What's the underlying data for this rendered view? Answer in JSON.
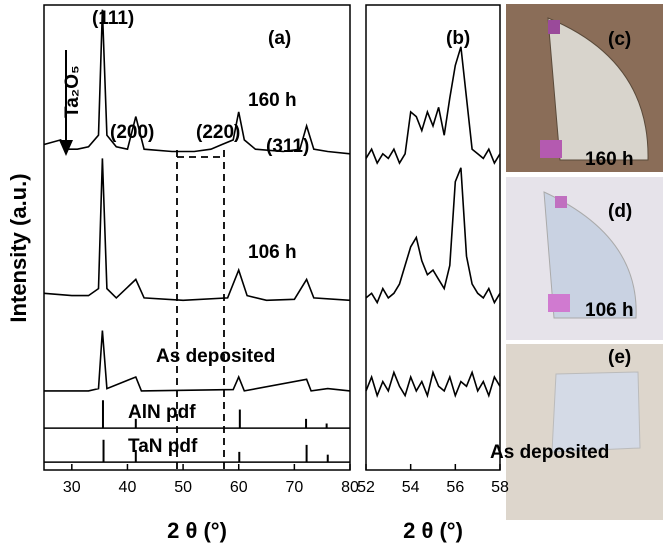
{
  "chart_data": [
    {
      "type": "line",
      "label": "(a)",
      "x_label": "2 θ (°)",
      "y_label": "Intensity (a.u.)",
      "xlim": [
        25,
        80
      ],
      "xticks": [
        30,
        40,
        50,
        60,
        70,
        80
      ],
      "ylim": [
        0,
        100
      ],
      "color": "#000000",
      "annotations": [
        "(111)",
        "(200)",
        "(220)",
        "(311)",
        "Ta₂O₅"
      ],
      "series": [
        {
          "name": "160 h",
          "x": [
            25,
            28,
            29,
            31,
            33,
            34.8,
            35.5,
            36.3,
            38,
            40,
            41.5,
            43,
            48,
            52,
            55,
            57,
            59,
            60,
            61,
            63,
            68,
            71,
            72.2,
            73.5,
            76,
            80
          ],
          "values": [
            70,
            71,
            69,
            69,
            69.5,
            72,
            99,
            72,
            69.5,
            69,
            76,
            69,
            68.5,
            68.5,
            69,
            70,
            71,
            77,
            71,
            69,
            68.5,
            69,
            74,
            69,
            68.5,
            68
          ]
        },
        {
          "name": "106 h",
          "x": [
            25,
            30,
            33,
            34.8,
            35.5,
            36.3,
            38,
            41.5,
            43,
            50,
            58,
            60,
            61.5,
            65,
            70,
            72.2,
            73.5,
            80
          ],
          "values": [
            38,
            37.5,
            37.5,
            39,
            67,
            39,
            37,
            41,
            37,
            36.5,
            37,
            43,
            37.5,
            36.5,
            36.7,
            41,
            37,
            36.5
          ]
        },
        {
          "name": "As deposited",
          "x": [
            25,
            33,
            34.8,
            35.5,
            36.3,
            41.5,
            42.5,
            59,
            60,
            61,
            72.2,
            73,
            76,
            80
          ],
          "values": [
            17,
            17,
            17.5,
            30,
            17.5,
            20,
            17,
            17.3,
            20,
            17,
            19.5,
            17,
            17.5,
            17
          ]
        }
      ],
      "references": [
        {
          "name": "AlN pdf",
          "baseline": 9,
          "x": [
            35.6,
            41.5,
            60.2,
            72.1,
            75.8
          ],
          "values": [
            15,
            11,
            13,
            11,
            10
          ]
        },
        {
          "name": "TaN pdf",
          "baseline": 1.7,
          "x": [
            35.7,
            41.5,
            60.1,
            72.2,
            76
          ],
          "values": [
            6.5,
            4.3,
            3.9,
            5.4,
            3.3
          ]
        }
      ]
    },
    {
      "type": "line",
      "label": "(b)",
      "x_label": "2 θ (°)",
      "xlim": [
        52,
        58
      ],
      "xticks": [
        52,
        54,
        56,
        58
      ],
      "ylim": [
        0,
        100
      ],
      "color": "#000000",
      "series": [
        {
          "name": "160 h",
          "x": [
            52,
            52.25,
            52.5,
            52.75,
            53,
            53.25,
            53.5,
            53.75,
            54,
            54.25,
            54.5,
            54.75,
            55,
            55.25,
            55.5,
            55.75,
            56,
            56.25,
            56.5,
            56.75,
            57,
            57.25,
            57.5,
            57.75,
            58
          ],
          "values": [
            67,
            69,
            66,
            68,
            67,
            69,
            66,
            68,
            77,
            76,
            73,
            77,
            74,
            78,
            72,
            80,
            87,
            91,
            80,
            69,
            68,
            67,
            69,
            66,
            68
          ]
        },
        {
          "name": "106 h",
          "x": [
            52,
            52.25,
            52.5,
            52.75,
            53,
            53.25,
            53.5,
            53.75,
            54,
            54.25,
            54.5,
            54.75,
            55,
            55.25,
            55.5,
            55.75,
            56,
            56.25,
            56.5,
            56.75,
            57,
            57.25,
            57.5,
            57.75,
            58
          ],
          "values": [
            37,
            38,
            36,
            39,
            37,
            38,
            40,
            44,
            48,
            50,
            45,
            42,
            43,
            41,
            39,
            44,
            62,
            65,
            46,
            40,
            38,
            37,
            39,
            36,
            38
          ]
        },
        {
          "name": "As deposited",
          "x": [
            52,
            52.25,
            52.5,
            52.75,
            53,
            53.25,
            53.5,
            53.75,
            54,
            54.25,
            54.5,
            54.75,
            55,
            55.25,
            55.5,
            55.75,
            56,
            56.25,
            56.5,
            56.75,
            57,
            57.25,
            57.5,
            57.75,
            58
          ],
          "values": [
            17,
            20,
            16,
            19,
            17,
            21,
            18,
            16,
            20,
            17,
            19,
            16,
            21,
            18,
            17,
            20,
            16,
            19,
            18,
            21,
            17,
            19,
            16,
            20,
            18
          ]
        }
      ]
    }
  ],
  "photos": [
    {
      "label": "(c)",
      "caption": "160 h"
    },
    {
      "label": "(d)",
      "caption": "106 h"
    },
    {
      "label": "(e)",
      "caption": "As deposited"
    }
  ]
}
